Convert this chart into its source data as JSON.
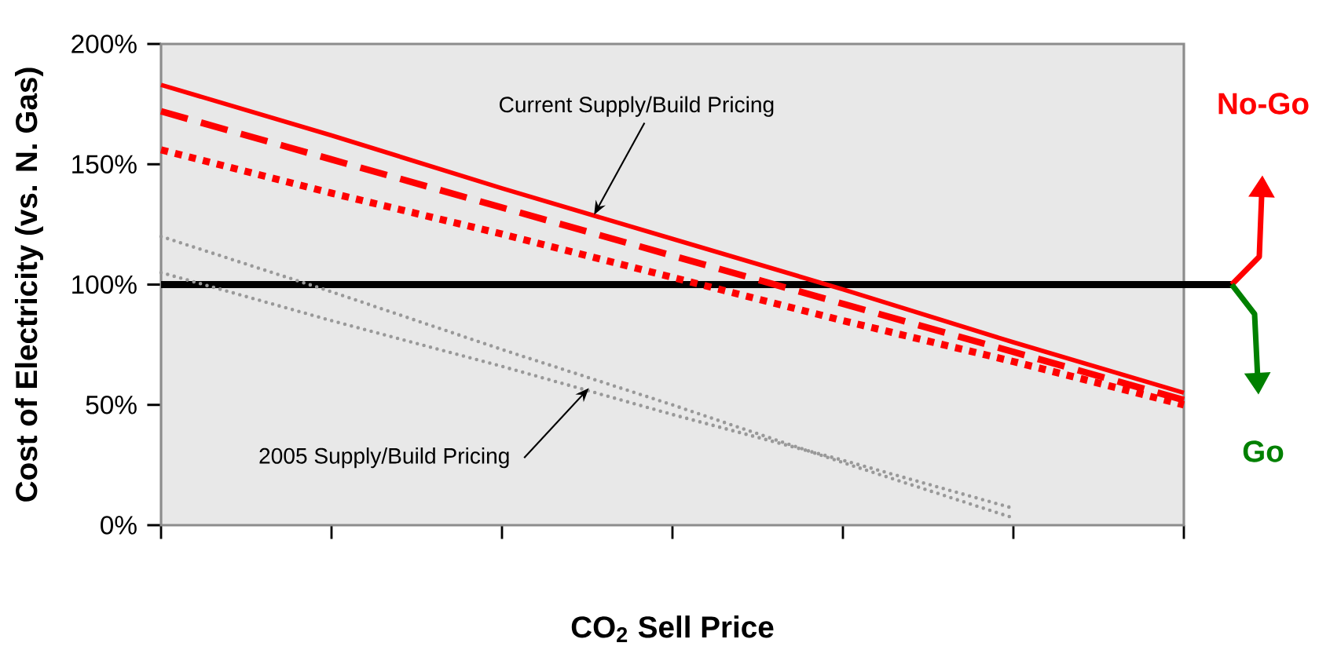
{
  "chart_data": {
    "type": "line",
    "xlabel": "CO$_{2}$ Sell Price",
    "ylabel": "Cost of Electricity (vs. N. Gas)",
    "categories": [
      null,
      null,
      null,
      null,
      null,
      null,
      null
    ],
    "ylim": [
      0,
      200
    ],
    "yticks": [
      {
        "value": 0,
        "label": "0%"
      },
      {
        "value": 50,
        "label": "50%"
      },
      {
        "value": 100,
        "label": "100%"
      },
      {
        "value": 150,
        "label": "150%"
      },
      {
        "value": 200,
        "label": "200%"
      }
    ],
    "tick_labels": "y",
    "grid": false,
    "series": [
      {
        "values": [
          183,
          162,
          140,
          119,
          98,
          76,
          55
        ],
        "color": "#ff0000",
        "line_style": "solid"
      },
      {
        "values": [
          172,
          152,
          132,
          112,
          92,
          72,
          52
        ],
        "color": "#ff0000",
        "line_style": "dashed"
      },
      {
        "values": [
          156,
          138,
          121,
          103,
          85,
          68,
          50
        ],
        "color": "#ff0000",
        "line_style": "dotted"
      },
      {
        "values": [
          120,
          97,
          73,
          50,
          26,
          3,
          null
        ],
        "color": "#999999",
        "line_style": "dotted"
      },
      {
        "values": [
          105,
          85,
          66,
          46,
          27,
          7,
          null
        ],
        "color": "#999999",
        "line_style": "dotted"
      }
    ],
    "ref_lines": [
      {
        "axis": "y",
        "value": 100,
        "color": "#000000"
      }
    ],
    "annotations": [
      "Current Supply/Build Pricing",
      "2005 Supply/Build Pricing",
      "No-Go",
      "Go"
    ]
  }
}
